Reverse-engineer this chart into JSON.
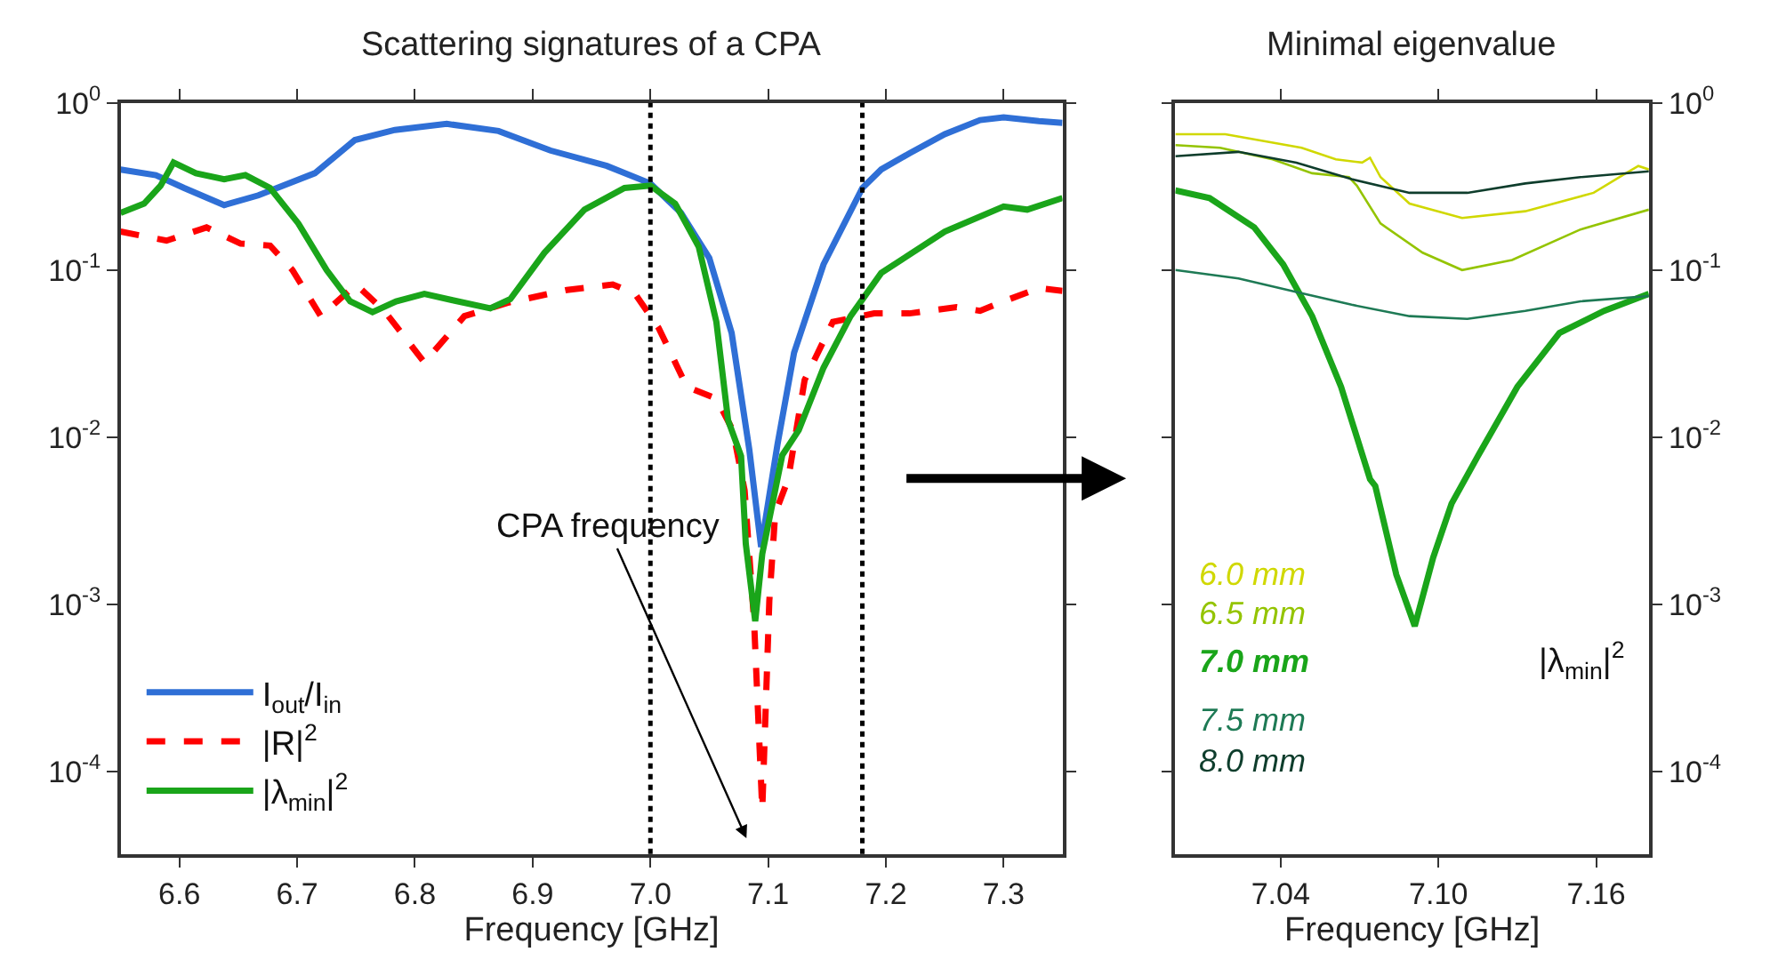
{
  "chart_data": [
    {
      "type": "line",
      "title": "Scattering signatures of a CPA",
      "xlabel": "Frequency [GHz]",
      "log": "y",
      "legend": "bottom left",
      "xlim": [
        6.55,
        7.35
      ],
      "xticks": [
        6.6,
        6.7,
        6.8,
        6.9,
        {
          "value": 7.0,
          "label": "7.0"
        },
        7.1,
        7.2,
        7.3
      ],
      "ylim": [
        3.2e-05,
        1
      ],
      "yticks": [
        {
          "value": 1,
          "label": "10$^{0}$"
        },
        {
          "value": 0.1,
          "label": "10$^{-1}$"
        },
        {
          "value": 0.01,
          "label": "10$^{-2}$"
        },
        {
          "value": 0.001,
          "label": "10$^{-3}$"
        },
        {
          "value": 0.0001,
          "label": "10$^{-4}$"
        }
      ],
      "ref_lines": [
        {
          "axis": "x",
          "value": 7.0,
          "color": "#000000",
          "line_style": "dotted"
        },
        {
          "axis": "x",
          "value": 7.18,
          "color": "#000000",
          "line_style": "dotted"
        }
      ],
      "annotations": [
        "CPA frequency"
      ],
      "series": [
        {
          "name": "I$_{out}$/I$_{in}$",
          "color": "#2f6fd6",
          "line_style": "solid",
          "x": [
            6.55,
            6.58,
            6.604,
            6.638,
            6.667,
            6.715,
            6.749,
            6.783,
            6.827,
            6.871,
            6.915,
            6.963,
            7.0,
            7.026,
            7.05,
            7.069,
            7.084,
            7.094,
            7.108,
            7.122,
            7.147,
            7.18,
            7.196,
            7.22,
            7.25,
            7.28,
            7.3,
            7.33,
            7.35
          ],
          "values": [
            0.4,
            0.37,
            0.31,
            0.245,
            0.28,
            0.38,
            0.6,
            0.69,
            0.75,
            0.68,
            0.52,
            0.42,
            0.33,
            0.22,
            0.118,
            0.042,
            0.0084,
            0.0022,
            0.0091,
            0.032,
            0.108,
            0.31,
            0.4,
            0.5,
            0.65,
            0.79,
            0.82,
            0.78,
            0.76
          ]
        },
        {
          "name": "|R|$^{2}$",
          "color": "#ff0000",
          "line_style": "dashed",
          "x": [
            6.55,
            6.589,
            6.623,
            6.652,
            6.677,
            6.696,
            6.72,
            6.75,
            6.774,
            6.808,
            6.842,
            6.88,
            6.929,
            6.968,
            6.987,
            7.007,
            7.031,
            7.056,
            7.07,
            7.08,
            7.088,
            7.095,
            7.101,
            7.106,
            7.117,
            7.131,
            7.155,
            7.19,
            7.22,
            7.26,
            7.28,
            7.3,
            7.33,
            7.35
          ],
          "values": [
            0.17,
            0.15,
            0.18,
            0.144,
            0.14,
            0.1,
            0.053,
            0.082,
            0.057,
            0.028,
            0.053,
            0.064,
            0.076,
            0.082,
            0.072,
            0.045,
            0.02,
            0.017,
            0.011,
            0.0048,
            0.0008,
            5.9e-05,
            0.00105,
            0.0035,
            0.0056,
            0.022,
            0.049,
            0.055,
            0.055,
            0.06,
            0.057,
            0.065,
            0.078,
            0.075
          ]
        },
        {
          "name": "|λ$_{min}$|$^{2}$",
          "color": "#1aa51a",
          "line_style": "solid",
          "x": [
            6.55,
            6.57,
            6.584,
            6.595,
            6.614,
            6.638,
            6.656,
            6.677,
            6.701,
            6.725,
            6.745,
            6.764,
            6.784,
            6.808,
            6.832,
            6.864,
            6.881,
            6.91,
            6.944,
            6.978,
            7.0,
            7.021,
            7.041,
            7.056,
            7.066,
            7.077,
            7.081,
            7.089,
            7.095,
            7.112,
            7.126,
            7.147,
            7.17,
            7.196,
            7.25,
            7.3,
            7.32,
            7.35
          ],
          "values": [
            0.22,
            0.25,
            0.32,
            0.44,
            0.38,
            0.35,
            0.37,
            0.31,
            0.19,
            0.1,
            0.065,
            0.056,
            0.065,
            0.072,
            0.066,
            0.059,
            0.067,
            0.127,
            0.23,
            0.31,
            0.32,
            0.25,
            0.138,
            0.049,
            0.0126,
            0.0077,
            0.0023,
            0.00079,
            0.002,
            0.0078,
            0.011,
            0.026,
            0.053,
            0.096,
            0.17,
            0.24,
            0.23,
            0.27
          ]
        }
      ]
    },
    {
      "type": "line",
      "title": "Minimal eigenvalue",
      "xlabel": "Frequency [GHz]",
      "log": "y",
      "legend": false,
      "xlim": [
        7.0,
        7.18
      ],
      "xticks": [
        7.04,
        {
          "value": 7.1,
          "label": "7.10"
        },
        7.16
      ],
      "ylim": [
        3.2e-05,
        1
      ],
      "yticks": [
        {
          "value": 1,
          "label": "10$^{0}$"
        },
        {
          "value": 0.1,
          "label": "10$^{-1}$"
        },
        {
          "value": 0.01,
          "label": "10$^{-2}$"
        },
        {
          "value": 0.001,
          "label": "10$^{-3}$"
        },
        {
          "value": 0.0001,
          "label": "10$^{-4}$"
        }
      ],
      "annotations": [
        "|λ$_{min}$|$^{2}$"
      ],
      "series": [
        {
          "name": "6.0 mm",
          "color": "#d0d800",
          "x": [
            7.0,
            7.019,
            7.048,
            7.061,
            7.071,
            7.074,
            7.078,
            7.089,
            7.109,
            7.133,
            7.159,
            7.17,
            7.176,
            7.18
          ],
          "values": [
            0.65,
            0.65,
            0.54,
            0.46,
            0.44,
            0.47,
            0.36,
            0.25,
            0.205,
            0.225,
            0.29,
            0.37,
            0.42,
            0.4
          ]
        },
        {
          "name": "6.5 mm",
          "color": "#94c400",
          "x": [
            7.0,
            7.017,
            7.037,
            7.052,
            7.066,
            7.069,
            7.078,
            7.094,
            7.109,
            7.128,
            7.154,
            7.18
          ],
          "values": [
            0.56,
            0.54,
            0.46,
            0.38,
            0.36,
            0.32,
            0.19,
            0.127,
            0.1,
            0.115,
            0.175,
            0.23
          ]
        },
        {
          "name": "7.0 mm",
          "color": "#1aa51a",
          "x": [
            7.0,
            7.013,
            7.03,
            7.041,
            7.052,
            7.063,
            7.074,
            7.076,
            7.084,
            7.091,
            7.098,
            7.105,
            7.115,
            7.13,
            7.146,
            7.163,
            7.18
          ],
          "values": [
            0.3,
            0.27,
            0.18,
            0.108,
            0.053,
            0.02,
            0.0056,
            0.0051,
            0.0015,
            0.00074,
            0.0019,
            0.004,
            0.0077,
            0.02,
            0.042,
            0.057,
            0.072
          ]
        },
        {
          "name": "7.5 mm",
          "color": "#1e7a55",
          "x": [
            7.0,
            7.024,
            7.046,
            7.067,
            7.089,
            7.111,
            7.133,
            7.154,
            7.18
          ],
          "values": [
            0.1,
            0.089,
            0.074,
            0.062,
            0.053,
            0.051,
            0.057,
            0.065,
            0.07
          ]
        },
        {
          "name": "8.0 mm",
          "color": "#0e3d2c",
          "x": [
            7.0,
            7.024,
            7.046,
            7.067,
            7.089,
            7.111,
            7.133,
            7.154,
            7.18
          ],
          "values": [
            0.48,
            0.51,
            0.44,
            0.35,
            0.29,
            0.29,
            0.33,
            0.36,
            0.39
          ]
        }
      ]
    }
  ]
}
